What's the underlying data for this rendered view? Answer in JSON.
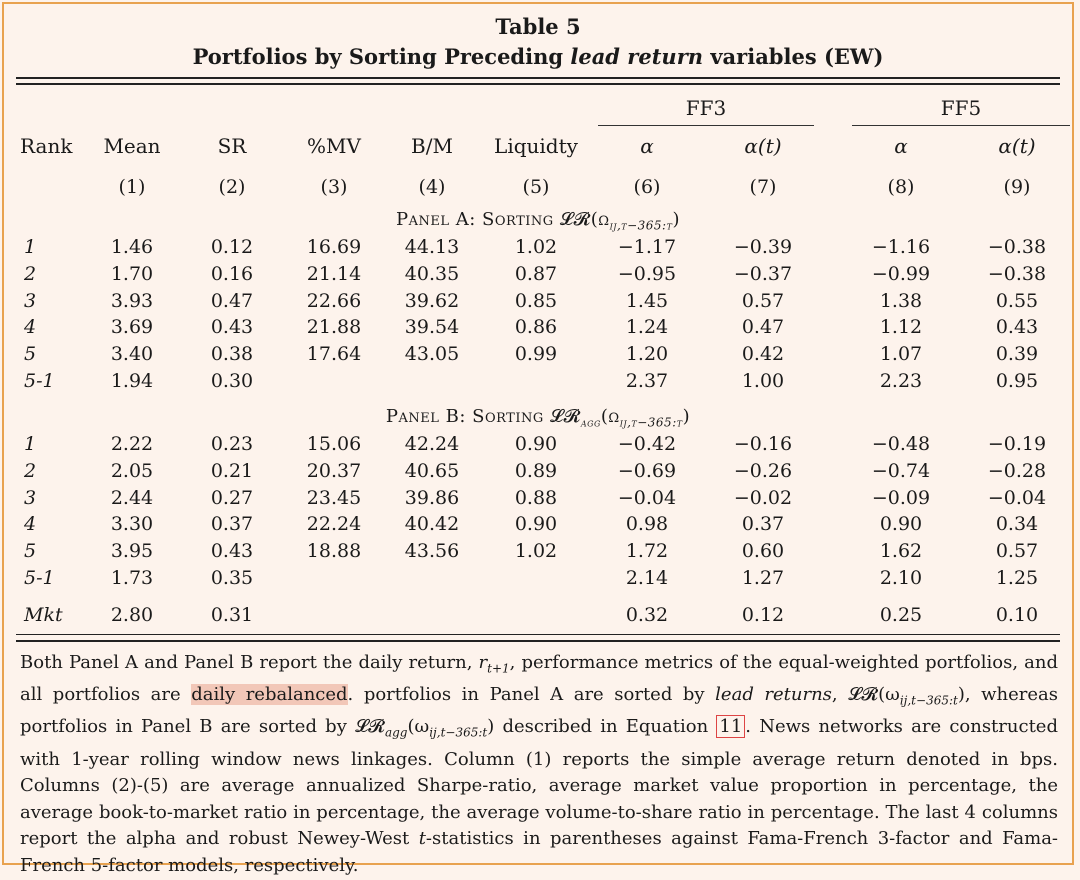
{
  "title_line1": "Table 5",
  "title_line2_pre": "Portfolios by Sorting Preceding ",
  "title_line2_em": "lead return",
  "title_line2_post": " variables (EW)",
  "group_headers": [
    "FF3",
    "FF5"
  ],
  "columns": [
    "Rank",
    "Mean",
    "SR",
    "%MV",
    "B/M",
    "Liquidty",
    "α",
    "α(t)",
    "α",
    "α(t)"
  ],
  "column_numbers": [
    "(1)",
    "(2)",
    "(3)",
    "(4)",
    "(5)",
    "(6)",
    "(7)",
    "(8)",
    "(9)"
  ],
  "panel_a_label": "Panel A: Sorting 𝓛𝓡(ω",
  "panel_a_sub": "ij,t−365:t",
  "panel_b_label": "Panel B: Sorting 𝓛𝓡",
  "panel_b_agg": "agg",
  "panel_b_sub": "ij,t−365:t",
  "panel_a_rows": [
    {
      "rank": "1",
      "vals": [
        "1.46",
        "0.12",
        "16.69",
        "44.13",
        "1.02",
        "−1.17",
        "−0.39",
        "−1.16",
        "−0.38"
      ]
    },
    {
      "rank": "2",
      "vals": [
        "1.70",
        "0.16",
        "21.14",
        "40.35",
        "0.87",
        "−0.95",
        "−0.37",
        "−0.99",
        "−0.38"
      ]
    },
    {
      "rank": "3",
      "vals": [
        "3.93",
        "0.47",
        "22.66",
        "39.62",
        "0.85",
        "1.45",
        "0.57",
        "1.38",
        "0.55"
      ]
    },
    {
      "rank": "4",
      "vals": [
        "3.69",
        "0.43",
        "21.88",
        "39.54",
        "0.86",
        "1.24",
        "0.47",
        "1.12",
        "0.43"
      ]
    },
    {
      "rank": "5",
      "vals": [
        "3.40",
        "0.38",
        "17.64",
        "43.05",
        "0.99",
        "1.20",
        "0.42",
        "1.07",
        "0.39"
      ]
    },
    {
      "rank": "5-1",
      "vals": [
        "1.94",
        "0.30",
        "",
        "",
        "",
        "2.37",
        "1.00",
        "2.23",
        "0.95"
      ]
    }
  ],
  "panel_b_rows": [
    {
      "rank": "1",
      "vals": [
        "2.22",
        "0.23",
        "15.06",
        "42.24",
        "0.90",
        "−0.42",
        "−0.16",
        "−0.48",
        "−0.19"
      ]
    },
    {
      "rank": "2",
      "vals": [
        "2.05",
        "0.21",
        "20.37",
        "40.65",
        "0.89",
        "−0.69",
        "−0.26",
        "−0.74",
        "−0.28"
      ]
    },
    {
      "rank": "3",
      "vals": [
        "2.44",
        "0.27",
        "23.45",
        "39.86",
        "0.88",
        "−0.04",
        "−0.02",
        "−0.09",
        "−0.04"
      ]
    },
    {
      "rank": "4",
      "vals": [
        "3.30",
        "0.37",
        "22.24",
        "40.42",
        "0.90",
        "0.98",
        "0.37",
        "0.90",
        "0.34"
      ]
    },
    {
      "rank": "5",
      "vals": [
        "3.95",
        "0.43",
        "18.88",
        "43.56",
        "1.02",
        "1.72",
        "0.60",
        "1.62",
        "0.57"
      ]
    },
    {
      "rank": "5-1",
      "vals": [
        "1.73",
        "0.35",
        "",
        "",
        "",
        "2.14",
        "1.27",
        "2.10",
        "1.25"
      ]
    }
  ],
  "mkt_row": {
    "rank": "Mkt",
    "vals": [
      "2.80",
      "0.31",
      "",
      "",
      "",
      "0.32",
      "0.12",
      "0.25",
      "0.10"
    ]
  },
  "note": {
    "p1": "Both Panel A and Panel B report the daily return, ",
    "r": "r",
    "r_sub": "t+1",
    "p2": ", performance metrics of the equal-weighted portfolios, and all portfolios are ",
    "highlight": "daily rebalanced",
    "p3": ".  portfolios in Panel A are sorted by ",
    "lead": "lead returns",
    "p4": ", 𝓛𝓡(ω",
    "sub1": "ij,t−365:t",
    "p5": "), whereas portfolios in Panel B are sorted by 𝓛𝓡",
    "agg": "agg",
    "p6": "(ω",
    "sub2": "ij,t−365:t",
    "p7": ") described in Equation ",
    "eqref": "11",
    "p8": ". News networks are constructed with 1-year rolling window news linkages. Column (1) reports the simple average return denoted in bps. Columns (2)-(5) are average annualized Sharpe-ratio, average market value proportion in percentage, the average book-to-market ratio in percentage, the average volume-to-share ratio in percentage. The last 4 columns report the alpha and robust Newey-West ",
    "t": "t",
    "p9": "-statistics in parentheses against Fama-French 3-factor and Fama-French 5-factor models, respectively."
  }
}
